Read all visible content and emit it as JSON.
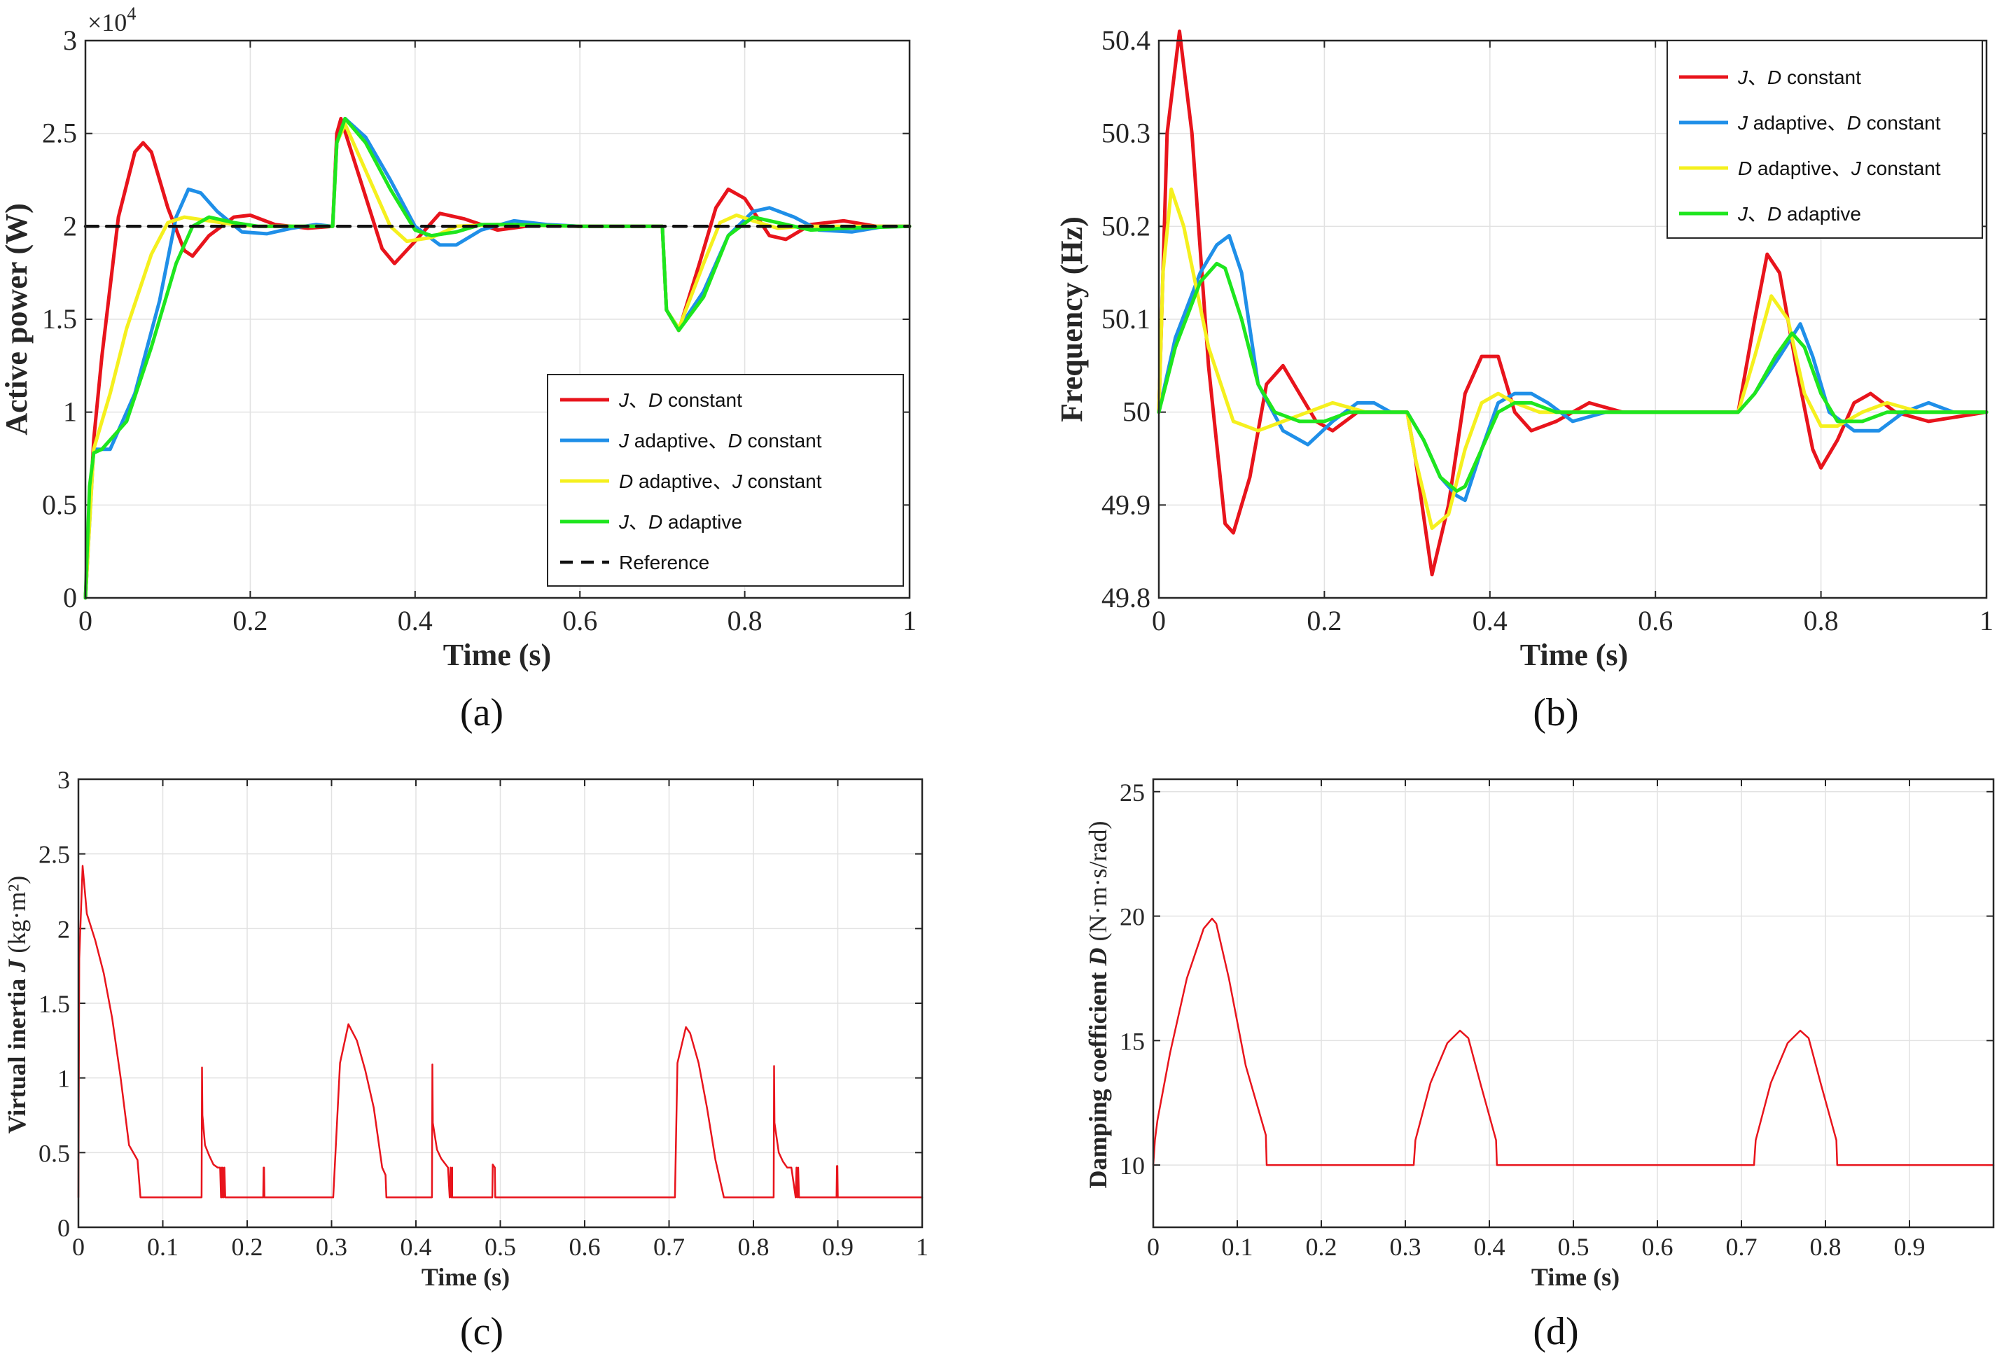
{
  "chart_data": [
    {
      "panel": "a",
      "type": "line",
      "caption": "(a)",
      "xlabel": "Time (s)",
      "ylabel": "Active power (W)",
      "y_exponent": "×10^4",
      "xlim": [
        0,
        1
      ],
      "ylim": [
        0,
        3
      ],
      "xticks": [
        0,
        0.2,
        0.4,
        0.6,
        0.8,
        1
      ],
      "xtick_labels": [
        "0",
        "0.2",
        "0.4",
        "0.6",
        "0.8",
        "1"
      ],
      "yticks": [
        0,
        0.5,
        1,
        1.5,
        2,
        2.5,
        3
      ],
      "ytick_labels": [
        "0",
        "0.5",
        "1",
        "1.5",
        "2",
        "2.5",
        "3"
      ],
      "grid": true,
      "legend_position": "bottom-right",
      "series": [
        {
          "name": "J、D constant",
          "color": "#e8141c",
          "x": [
            0,
            0.01,
            0.02,
            0.04,
            0.06,
            0.07,
            0.08,
            0.1,
            0.12,
            0.13,
            0.15,
            0.18,
            0.2,
            0.23,
            0.27,
            0.3,
            0.305,
            0.31,
            0.33,
            0.36,
            0.375,
            0.4,
            0.43,
            0.46,
            0.5,
            0.55,
            0.6,
            0.7,
            0.705,
            0.72,
            0.745,
            0.765,
            0.78,
            0.8,
            0.83,
            0.85,
            0.88,
            0.92,
            0.96,
            1.0
          ],
          "y": [
            0,
            0.85,
            1.3,
            2.05,
            2.4,
            2.45,
            2.4,
            2.1,
            1.87,
            1.84,
            1.95,
            2.05,
            2.06,
            2.01,
            1.99,
            2.0,
            2.5,
            2.58,
            2.3,
            1.88,
            1.8,
            1.92,
            2.07,
            2.04,
            1.98,
            2.01,
            2.0,
            2.0,
            1.55,
            1.44,
            1.8,
            2.1,
            2.2,
            2.15,
            1.95,
            1.93,
            2.01,
            2.03,
            2.0,
            2.0
          ]
        },
        {
          "name": "J adaptive、D constant",
          "color": "#1f8fe8",
          "x": [
            0,
            0.01,
            0.03,
            0.06,
            0.09,
            0.11,
            0.125,
            0.14,
            0.16,
            0.19,
            0.22,
            0.25,
            0.28,
            0.3,
            0.305,
            0.315,
            0.34,
            0.37,
            0.4,
            0.43,
            0.45,
            0.48,
            0.52,
            0.56,
            0.6,
            0.7,
            0.705,
            0.72,
            0.75,
            0.78,
            0.81,
            0.83,
            0.86,
            0.89,
            0.93,
            0.97,
            1.0
          ],
          "y": [
            0,
            0.8,
            0.8,
            1.1,
            1.6,
            2.05,
            2.2,
            2.18,
            2.08,
            1.97,
            1.96,
            1.99,
            2.01,
            2.0,
            2.45,
            2.58,
            2.48,
            2.25,
            2.0,
            1.9,
            1.9,
            1.98,
            2.03,
            2.01,
            2.0,
            2.0,
            1.55,
            1.45,
            1.65,
            1.95,
            2.08,
            2.1,
            2.05,
            1.98,
            1.97,
            2.0,
            2.0
          ]
        },
        {
          "name": "D adaptive、J constant",
          "color": "#f5f01e",
          "x": [
            0,
            0.01,
            0.03,
            0.05,
            0.08,
            0.1,
            0.12,
            0.15,
            0.18,
            0.21,
            0.25,
            0.3,
            0.305,
            0.315,
            0.34,
            0.37,
            0.39,
            0.42,
            0.45,
            0.5,
            0.6,
            0.7,
            0.705,
            0.72,
            0.75,
            0.77,
            0.79,
            0.81,
            0.84,
            0.87,
            0.92,
            1.0
          ],
          "y": [
            0,
            0.8,
            1.1,
            1.45,
            1.85,
            2.02,
            2.05,
            2.03,
            2.01,
            2.0,
            2.0,
            2.0,
            2.45,
            2.55,
            2.3,
            2.0,
            1.92,
            1.94,
            2.0,
            2.01,
            2.0,
            2.0,
            1.55,
            1.45,
            1.8,
            2.02,
            2.06,
            2.03,
            1.99,
            2.0,
            2.0,
            2.0
          ]
        },
        {
          "name": "J、D adaptive",
          "color": "#1ee61e",
          "x": [
            0,
            0.005,
            0.01,
            0.02,
            0.05,
            0.08,
            0.11,
            0.13,
            0.15,
            0.18,
            0.21,
            0.25,
            0.3,
            0.305,
            0.315,
            0.34,
            0.37,
            0.4,
            0.42,
            0.45,
            0.48,
            0.52,
            0.6,
            0.7,
            0.705,
            0.72,
            0.75,
            0.78,
            0.81,
            0.84,
            0.88,
            0.92,
            1.0
          ],
          "y": [
            0,
            0.6,
            0.78,
            0.8,
            0.95,
            1.35,
            1.8,
            2.0,
            2.05,
            2.02,
            2.0,
            2.0,
            2.0,
            2.45,
            2.58,
            2.45,
            2.2,
            1.98,
            1.95,
            1.97,
            2.01,
            2.01,
            2.0,
            2.0,
            1.55,
            1.44,
            1.62,
            1.95,
            2.05,
            2.02,
            1.98,
            1.99,
            2.0
          ]
        },
        {
          "name": "Reference",
          "color": "#111111",
          "dashed": true,
          "x": [
            0,
            1
          ],
          "y": [
            2,
            2
          ]
        }
      ]
    },
    {
      "panel": "b",
      "type": "line",
      "caption": "(b)",
      "xlabel": "Time (s)",
      "ylabel": "Frequency (Hz)",
      "xlim": [
        0,
        1
      ],
      "ylim": [
        49.8,
        50.4
      ],
      "xticks": [
        0,
        0.2,
        0.4,
        0.6,
        0.8,
        1
      ],
      "xtick_labels": [
        "0",
        "0.2",
        "0.4",
        "0.6",
        "0.8",
        "1"
      ],
      "yticks": [
        49.8,
        49.9,
        50,
        50.1,
        50.2,
        50.3,
        50.4
      ],
      "ytick_labels": [
        "49.8",
        "49.9",
        "50",
        "50.1",
        "50.2",
        "50.3",
        "50.4"
      ],
      "grid": true,
      "legend_position": "top-right",
      "series": [
        {
          "name": "J、D constant",
          "color": "#e8141c",
          "x": [
            0,
            0.01,
            0.025,
            0.04,
            0.06,
            0.08,
            0.09,
            0.11,
            0.13,
            0.15,
            0.17,
            0.19,
            0.21,
            0.24,
            0.27,
            0.3,
            0.31,
            0.33,
            0.35,
            0.37,
            0.39,
            0.41,
            0.43,
            0.45,
            0.48,
            0.52,
            0.56,
            0.6,
            0.7,
            0.72,
            0.735,
            0.75,
            0.77,
            0.79,
            0.8,
            0.82,
            0.84,
            0.86,
            0.89,
            0.93,
            1.0
          ],
          "y": [
            50.0,
            50.3,
            50.41,
            50.3,
            50.05,
            49.88,
            49.87,
            49.93,
            50.03,
            50.05,
            50.02,
            49.99,
            49.98,
            50.0,
            50.0,
            50.0,
            49.95,
            49.825,
            49.9,
            50.02,
            50.06,
            50.06,
            50.0,
            49.98,
            49.99,
            50.01,
            50.0,
            50.0,
            50.0,
            50.1,
            50.17,
            50.15,
            50.05,
            49.96,
            49.94,
            49.97,
            50.01,
            50.02,
            50.0,
            49.99,
            50.0
          ]
        },
        {
          "name": "J adaptive、D constant",
          "color": "#1f8fe8",
          "x": [
            0,
            0.02,
            0.05,
            0.07,
            0.085,
            0.1,
            0.12,
            0.15,
            0.18,
            0.21,
            0.24,
            0.26,
            0.28,
            0.3,
            0.32,
            0.34,
            0.36,
            0.37,
            0.39,
            0.41,
            0.43,
            0.45,
            0.47,
            0.5,
            0.54,
            0.6,
            0.7,
            0.72,
            0.75,
            0.775,
            0.79,
            0.81,
            0.84,
            0.87,
            0.9,
            0.93,
            0.96,
            1.0
          ],
          "y": [
            50.0,
            50.08,
            50.15,
            50.18,
            50.19,
            50.15,
            50.03,
            49.98,
            49.965,
            49.99,
            50.01,
            50.01,
            50.0,
            50.0,
            49.97,
            49.93,
            49.91,
            49.905,
            49.96,
            50.01,
            50.02,
            50.02,
            50.01,
            49.99,
            50.0,
            50.0,
            50.0,
            50.02,
            50.06,
            50.095,
            50.06,
            50.0,
            49.98,
            49.98,
            50.0,
            50.01,
            50.0,
            50.0
          ]
        },
        {
          "name": "D adaptive、J constant",
          "color": "#f5f01e",
          "x": [
            0,
            0.005,
            0.015,
            0.03,
            0.06,
            0.09,
            0.12,
            0.15,
            0.18,
            0.21,
            0.25,
            0.3,
            0.31,
            0.33,
            0.35,
            0.37,
            0.39,
            0.41,
            0.43,
            0.46,
            0.5,
            0.6,
            0.7,
            0.72,
            0.74,
            0.76,
            0.78,
            0.8,
            0.82,
            0.85,
            0.88,
            0.92,
            1.0
          ],
          "y": [
            50.0,
            50.15,
            50.24,
            50.2,
            50.07,
            49.99,
            49.98,
            49.99,
            50.0,
            50.01,
            50.0,
            50.0,
            49.95,
            49.875,
            49.89,
            49.96,
            50.01,
            50.02,
            50.01,
            50.0,
            50.0,
            50.0,
            50.0,
            50.06,
            50.125,
            50.1,
            50.02,
            49.985,
            49.985,
            50.0,
            50.01,
            50.0,
            50.0
          ]
        },
        {
          "name": "J、D adaptive",
          "color": "#1ee61e",
          "x": [
            0,
            0.02,
            0.05,
            0.07,
            0.08,
            0.1,
            0.12,
            0.14,
            0.17,
            0.2,
            0.23,
            0.26,
            0.3,
            0.32,
            0.34,
            0.36,
            0.37,
            0.39,
            0.41,
            0.43,
            0.45,
            0.48,
            0.52,
            0.6,
            0.7,
            0.72,
            0.745,
            0.765,
            0.78,
            0.8,
            0.82,
            0.85,
            0.88,
            0.92,
            1.0
          ],
          "y": [
            50.0,
            50.07,
            50.14,
            50.16,
            50.155,
            50.1,
            50.03,
            50.0,
            49.99,
            49.99,
            50.0,
            50.0,
            50.0,
            49.97,
            49.93,
            49.915,
            49.92,
            49.96,
            50.0,
            50.01,
            50.01,
            50.0,
            50.0,
            50.0,
            50.0,
            50.02,
            50.06,
            50.085,
            50.07,
            50.02,
            49.99,
            49.99,
            50.0,
            50.0,
            50.0
          ]
        }
      ]
    },
    {
      "panel": "c",
      "type": "line",
      "caption": "(c)",
      "xlabel": "Time (s)",
      "ylabel": "Virtual inertia J (kg·m²)",
      "xlim": [
        0,
        1
      ],
      "ylim": [
        0,
        3
      ],
      "xticks": [
        0,
        0.1,
        0.2,
        0.3,
        0.4,
        0.5,
        0.6,
        0.7,
        0.8,
        0.9,
        1
      ],
      "xtick_labels": [
        "0",
        "0.1",
        "0.2",
        "0.3",
        "0.4",
        "0.5",
        "0.6",
        "0.7",
        "0.8",
        "0.9",
        "1"
      ],
      "yticks": [
        0,
        0.5,
        1,
        1.5,
        2,
        2.5,
        3
      ],
      "ytick_labels": [
        "0",
        "0.5",
        "1",
        "1.5",
        "2",
        "2.5",
        "3"
      ],
      "grid": true,
      "series": [
        {
          "name": "J",
          "color": "#e8141c",
          "x": [
            0,
            0.001,
            0.005,
            0.01,
            0.02,
            0.03,
            0.04,
            0.05,
            0.06,
            0.07,
            0.0735,
            0.0745,
            0.146,
            0.1465,
            0.147,
            0.15,
            0.155,
            0.16,
            0.165,
            0.168,
            0.169,
            0.17,
            0.17,
            0.171,
            0.172,
            0.173,
            0.174,
            0.174,
            0.219,
            0.2195,
            0.22,
            0.2205,
            0.302,
            0.31,
            0.32,
            0.33,
            0.34,
            0.35,
            0.36,
            0.364,
            0.365,
            0.419,
            0.4195,
            0.42,
            0.425,
            0.43,
            0.438,
            0.44,
            0.441,
            0.442,
            0.443,
            0.443,
            0.4905,
            0.491,
            0.4935,
            0.494,
            0.707,
            0.71,
            0.72,
            0.725,
            0.735,
            0.745,
            0.755,
            0.765,
            0.77,
            0.771,
            0.824,
            0.8245,
            0.825,
            0.83,
            0.835,
            0.84,
            0.845,
            0.85,
            0.851,
            0.852,
            0.853,
            0.854,
            0.855,
            0.8985,
            0.899,
            0.8995,
            0.9,
            1.0
          ],
          "y": [
            0.2,
            1.8,
            2.42,
            2.1,
            1.92,
            1.7,
            1.4,
            1.0,
            0.55,
            0.45,
            0.2,
            0.2,
            0.2,
            1.07,
            0.75,
            0.55,
            0.48,
            0.42,
            0.4,
            0.4,
            0.2,
            0.4,
            0.2,
            0.4,
            0.2,
            0.4,
            0.2,
            0.2,
            0.2,
            0.4,
            0.4,
            0.2,
            0.2,
            1.1,
            1.36,
            1.25,
            1.05,
            0.8,
            0.4,
            0.35,
            0.2,
            0.2,
            1.09,
            0.7,
            0.52,
            0.46,
            0.4,
            0.2,
            0.4,
            0.2,
            0.4,
            0.2,
            0.2,
            0.42,
            0.4,
            0.2,
            0.2,
            1.1,
            1.34,
            1.3,
            1.1,
            0.8,
            0.45,
            0.2,
            0.2,
            0.2,
            0.2,
            1.08,
            0.7,
            0.5,
            0.44,
            0.4,
            0.4,
            0.2,
            0.4,
            0.2,
            0.4,
            0.2,
            0.2,
            0.2,
            0.41,
            0.41,
            0.2,
            0.2
          ]
        }
      ]
    },
    {
      "panel": "d",
      "type": "line",
      "caption": "(d)",
      "xlabel": "Time (s)",
      "ylabel": "Damping coefficient D (N·m·s/rad)",
      "xlim": [
        0,
        1
      ],
      "ylim": [
        7.5,
        25.5
      ],
      "xticks": [
        0,
        0.1,
        0.2,
        0.3,
        0.4,
        0.5,
        0.6,
        0.7,
        0.8,
        0.9
      ],
      "xtick_labels": [
        "0",
        "0.1",
        "0.2",
        "0.3",
        "0.4",
        "0.5",
        "0.6",
        "0.7",
        "0.8",
        "0.9"
      ],
      "yticks": [
        10,
        15,
        20,
        25
      ],
      "ytick_labels": [
        "10",
        "15",
        "20",
        "25"
      ],
      "grid": true,
      "series": [
        {
          "name": "D",
          "color": "#e8141c",
          "x": [
            0,
            0.002,
            0.005,
            0.02,
            0.04,
            0.06,
            0.07,
            0.075,
            0.09,
            0.11,
            0.134,
            0.135,
            0.31,
            0.312,
            0.33,
            0.35,
            0.365,
            0.375,
            0.39,
            0.408,
            0.409,
            0.715,
            0.717,
            0.735,
            0.755,
            0.77,
            0.78,
            0.795,
            0.813,
            0.814,
            1.0
          ],
          "y": [
            10,
            11,
            11.8,
            14.5,
            17.5,
            19.5,
            19.9,
            19.7,
            17.5,
            14,
            11.2,
            10,
            10,
            11,
            13.3,
            14.9,
            15.4,
            15.1,
            13.2,
            11,
            10,
            10,
            11,
            13.3,
            14.9,
            15.4,
            15.1,
            13.2,
            11,
            10,
            10
          ]
        }
      ]
    }
  ],
  "legends": {
    "a": [
      "J、D constant",
      "J adaptive、D constant",
      "D adaptive、J constant",
      "J、D adaptive",
      "Reference"
    ],
    "b": [
      "J、D constant",
      "J adaptive、D constant",
      "D adaptive、J constant",
      "J、D adaptive"
    ]
  }
}
